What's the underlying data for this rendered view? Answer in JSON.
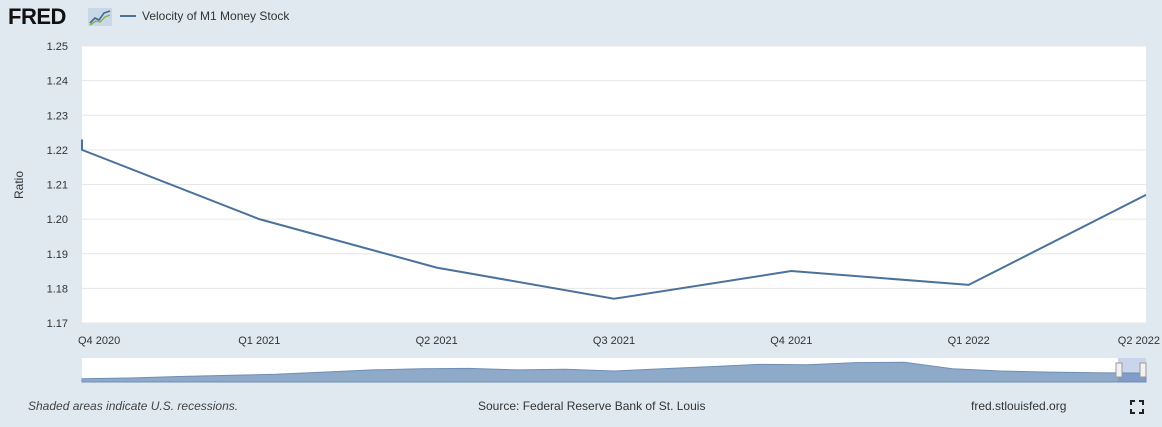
{
  "header": {
    "logo_text": "FRED",
    "logo_icon": "fred-graph-icon"
  },
  "chart_data": {
    "type": "line",
    "title": "",
    "series": [
      {
        "name": "Velocity of M1 Money Stock",
        "color": "#4b729b",
        "x": [
          "Q4 2020",
          "Q1 2021",
          "Q2 2021",
          "Q3 2021",
          "Q4 2021",
          "Q1 2022",
          "Q2 2022"
        ],
        "values": [
          1.22,
          1.2,
          1.186,
          1.177,
          1.185,
          1.181,
          1.207
        ]
      }
    ],
    "x_tick_labels": [
      "Q4 2020",
      "Q1 2021",
      "Q2 2021",
      "Q3 2021",
      "Q4 2021",
      "Q1 2022",
      "Q2 2022"
    ],
    "ylabel": "Ratio",
    "xlabel": "",
    "ylim": [
      1.17,
      1.25
    ],
    "y_ticks": [
      "1.17",
      "1.18",
      "1.19",
      "1.20",
      "1.21",
      "1.22",
      "1.23",
      "1.24",
      "1.25"
    ],
    "grid": true,
    "legend": "top-left",
    "line_color": "#4b729b",
    "navigator_color": "#8fa9c9"
  },
  "footer": {
    "note": "Shaded areas indicate U.S. recessions.",
    "source": "Source: Federal Reserve Bank of St. Louis",
    "site": "fred.stlouisfed.org",
    "fullscreen_icon": "fullscreen-icon"
  }
}
